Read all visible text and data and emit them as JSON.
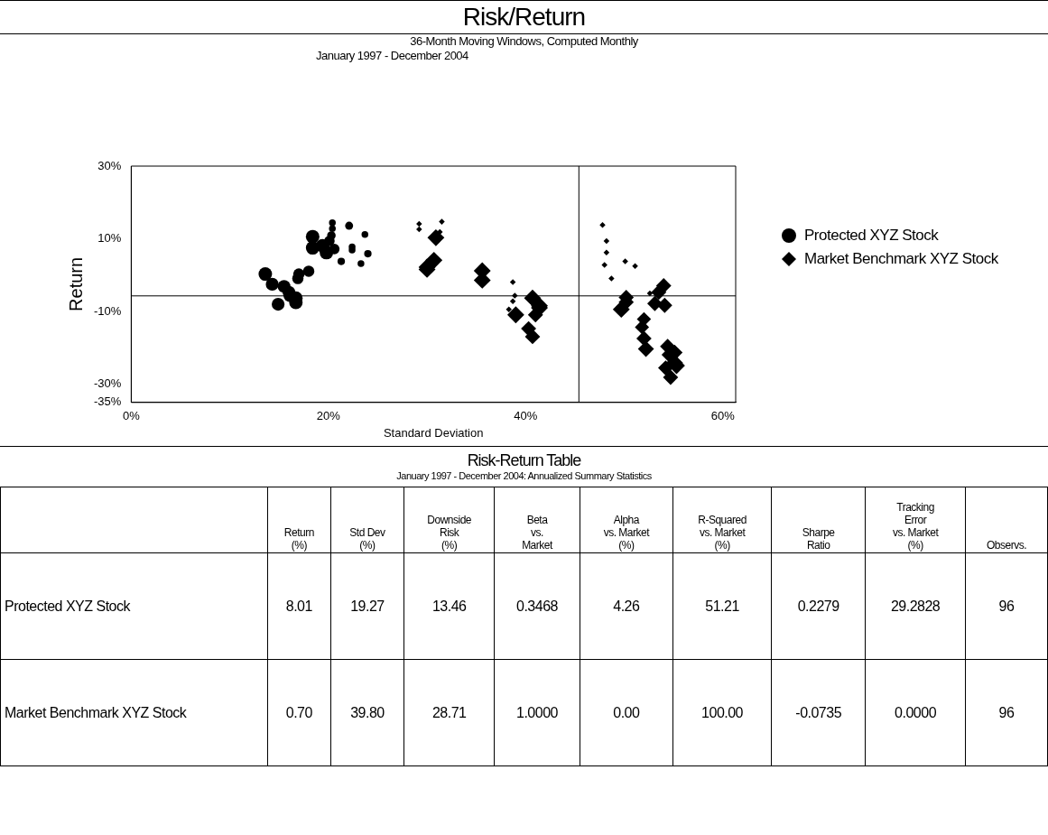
{
  "chart_data": [
    {
      "type": "bubble",
      "title": "Risk/Return",
      "subtitle": "36-Month Moving Windows, Computed Monthly",
      "annotations": [
        "January 1997 - December 2004"
      ],
      "xlabel": "Standard Deviation",
      "ylabel": "Return",
      "xlim": [
        0,
        61.3
      ],
      "xticks": [
        {
          "value": 0,
          "label": "0%"
        },
        {
          "value": 20,
          "label": "20%"
        },
        {
          "value": 40,
          "label": "40%"
        },
        {
          "value": 60,
          "label": "60%"
        }
      ],
      "ylim": [
        -35,
        30
      ],
      "yticks": [
        {
          "value": 30,
          "label": "30%"
        },
        {
          "value": 10,
          "label": "10%"
        },
        {
          "value": -10,
          "label": "-10%"
        },
        {
          "value": -30,
          "label": "-30%"
        },
        {
          "value": -35,
          "label": "-35%"
        }
      ],
      "grid": false,
      "legend": "right",
      "ref_lines": [
        {
          "axis": "x",
          "value": 45.4,
          "color": "#000000"
        },
        {
          "axis": "y",
          "value": -5.7,
          "color": "#000000"
        }
      ],
      "series": [
        {
          "name": "Protected XYZ Stock",
          "color": "#000000",
          "marker": "circle",
          "x": [
            13.6,
            14.3,
            14.9,
            15.5,
            16.1,
            16.7,
            16.9,
            17.0,
            16.7,
            16.0,
            18.0,
            18.4,
            18.4,
            19.4,
            19.8,
            20.1,
            20.3,
            20.4,
            20.4,
            20.6,
            21.3,
            22.1,
            22.4,
            22.4,
            23.3,
            23.7,
            24.0
          ],
          "values": [
            0.3,
            -2.5,
            -8.0,
            -3.1,
            -5.6,
            -7.5,
            -0.9,
            0.3,
            -6.3,
            -4.7,
            1.1,
            10.6,
            7.5,
            8.1,
            6.2,
            9.4,
            10.9,
            14.4,
            12.8,
            7.2,
            3.8,
            13.6,
            7.8,
            6.9,
            3.2,
            11.2,
            5.9
          ],
          "sizes": [
            1,
            0.9,
            0.9,
            0.9,
            0.9,
            1,
            0.7,
            0.7,
            1,
            0.9,
            0.7,
            1,
            1,
            1,
            1,
            0.6,
            0.4,
            0.25,
            0.25,
            0.6,
            0.3,
            0.35,
            0.25,
            0.25,
            0.25,
            0.25,
            0.3
          ]
        },
        {
          "name": "Market Benchmark XYZ Stock",
          "color": "#000000",
          "marker": "diamond",
          "x": [
            29.2,
            29.2,
            31.5,
            31.3,
            30.9,
            30.7,
            30.0,
            30.0,
            35.6,
            35.6,
            38.7,
            38.9,
            38.7,
            38.3,
            39.0,
            40.7,
            41.4,
            41.4,
            41.0,
            40.3,
            40.7,
            47.8,
            48.2,
            48.2,
            48.0,
            50.1,
            51.1,
            48.7,
            49.7,
            50.2,
            50.2,
            52.0,
            51.8,
            52.0,
            52.2,
            52.6,
            53.1,
            53.5,
            54.0,
            54.1,
            54.4,
            55.1,
            54.6,
            55.1,
            55.3,
            54.2,
            54.7
          ],
          "values": [
            14.1,
            12.6,
            14.7,
            11.9,
            10.3,
            4.1,
            1.6,
            2.2,
            1.2,
            -1.4,
            -1.9,
            -5.6,
            -7.2,
            -9.4,
            -10.9,
            -6.3,
            -8.4,
            -9.0,
            -10.9,
            -14.7,
            -16.9,
            13.8,
            9.4,
            6.2,
            2.8,
            3.8,
            2.5,
            -0.9,
            -9.4,
            -6.1,
            -7.4,
            -12.1,
            -14.3,
            -17.4,
            -20.3,
            -5.0,
            -7.8,
            -4.7,
            -2.9,
            -8.3,
            -19.6,
            -21.3,
            -21.9,
            -24.1,
            -24.9,
            -25.5,
            -28.1
          ],
          "sizes": [
            0.12,
            0.12,
            0.12,
            0.12,
            1,
            1,
            1,
            1,
            1,
            1,
            0.12,
            0.12,
            0.12,
            0.12,
            1,
            1,
            1,
            1,
            0.8,
            0.8,
            0.8,
            0.12,
            0.12,
            0.12,
            0.12,
            0.12,
            0.12,
            0.12,
            1,
            0.8,
            0.8,
            0.7,
            0.7,
            0.8,
            0.9,
            0.12,
            0.8,
            0.8,
            0.8,
            0.8,
            0.8,
            0.9,
            0.9,
            1,
            1,
            0.8,
            0.8
          ]
        }
      ]
    },
    {
      "type": "other",
      "title": "Risk-Return Table",
      "subtitle": "January 1997 - December 2004: Annualized Summary Statistics",
      "annotations": [
        "Return\n(%)",
        "Std Dev\n(%)",
        "Downside\nRisk\n(%)",
        "Beta\nvs.\nMarket",
        "Alpha\nvs. Market\n(%)",
        "R-Squared\nvs. Market\n(%)",
        "Sharpe\nRatio",
        "Tracking\nError\nvs. Market\n(%)",
        "Observs.",
        "Protected XYZ Stock",
        "8.01",
        "19.27",
        "13.46",
        "0.3468",
        "4.26",
        "51.21",
        "0.2279",
        "29.2828",
        "96",
        "Market Benchmark XYZ Stock",
        "0.70",
        "39.80",
        "28.71",
        "1.0000",
        "0.00",
        "100.00",
        "-0.0735",
        "0.0000",
        "96"
      ]
    }
  ]
}
